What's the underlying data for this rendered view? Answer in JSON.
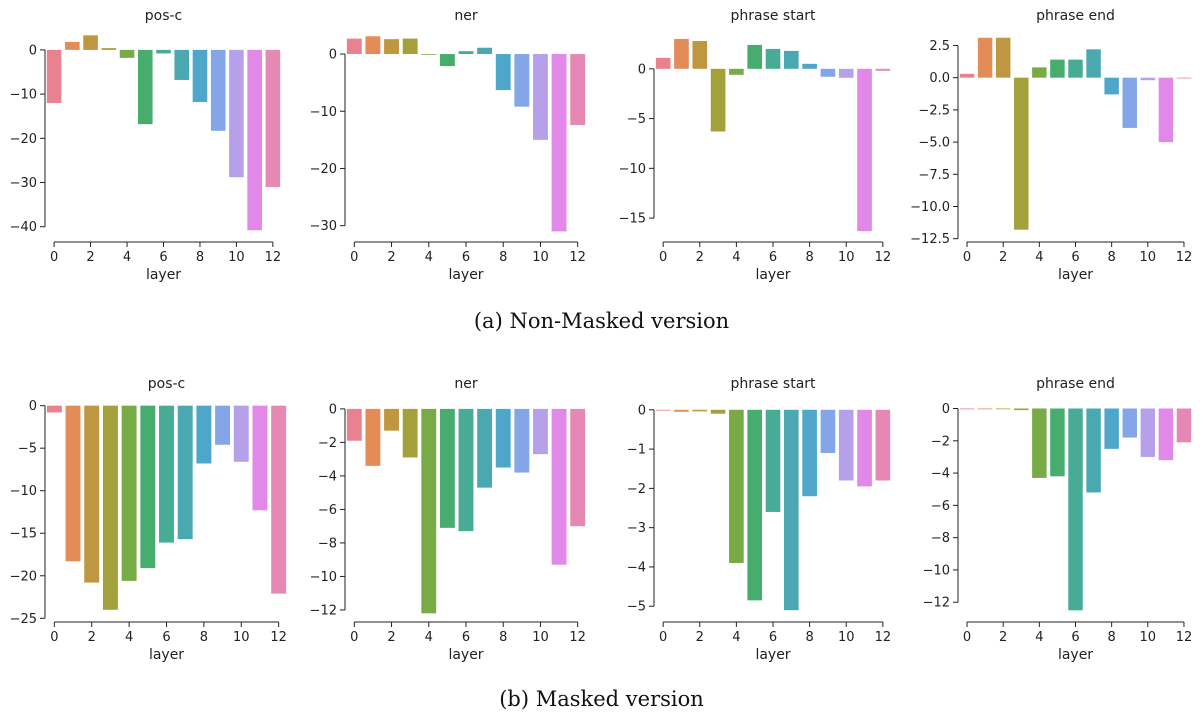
{
  "captions": {
    "top": "(a) Non-Masked version",
    "bottom": "(b) Masked version"
  },
  "colors": [
    "#e8828f",
    "#e38c58",
    "#be9740",
    "#a2a13c",
    "#78ab45",
    "#46ad6f",
    "#48ab96",
    "#4aa9b0",
    "#4fa6cb",
    "#84a6e8",
    "#b7a0ea",
    "#e188e8",
    "#e688b4"
  ],
  "chart_data": [
    {
      "type": "bar",
      "title": "pos-c",
      "xlabel": "layer",
      "ylabel": "",
      "categories": [
        0,
        1,
        2,
        3,
        4,
        5,
        6,
        7,
        8,
        9,
        10,
        11,
        12
      ],
      "values": [
        -12,
        1.8,
        3.3,
        0.4,
        -1.8,
        -16.8,
        -0.8,
        -6.8,
        -11.8,
        -18.3,
        -28.8,
        -40.8,
        -31
      ],
      "ylim": [
        -43,
        4.5
      ],
      "yticks": [
        0,
        -10,
        -20,
        -30,
        -40
      ],
      "xticks": [
        0,
        2,
        4,
        6,
        8,
        10,
        12
      ]
    },
    {
      "type": "bar",
      "title": "ner",
      "xlabel": "layer",
      "ylabel": "",
      "categories": [
        0,
        1,
        2,
        3,
        4,
        5,
        6,
        7,
        8,
        9,
        10,
        11,
        12
      ],
      "values": [
        2.7,
        3.1,
        2.6,
        2.7,
        0,
        -2.1,
        0.5,
        1.1,
        -6.3,
        -9.2,
        -15,
        -31,
        -12.4
      ],
      "ylim": [
        -32.5,
        4.2
      ],
      "yticks": [
        0,
        -10,
        -20,
        -30
      ],
      "xticks": [
        0,
        2,
        4,
        6,
        8,
        10,
        12
      ]
    },
    {
      "type": "bar",
      "title": "phrase start",
      "xlabel": "layer",
      "ylabel": "",
      "categories": [
        0,
        1,
        2,
        3,
        4,
        5,
        6,
        7,
        8,
        9,
        10,
        11,
        12
      ],
      "values": [
        1.1,
        3.0,
        2.8,
        -6.3,
        -0.6,
        2.4,
        2.0,
        1.8,
        0.5,
        -0.8,
        -0.9,
        -16.3,
        -0.2
      ],
      "ylim": [
        -17.2,
        3.9
      ],
      "yticks": [
        0,
        -5,
        -10,
        -15
      ],
      "xticks": [
        0,
        2,
        4,
        6,
        8,
        10,
        12
      ]
    },
    {
      "type": "bar",
      "title": "phrase end",
      "xlabel": "layer",
      "ylabel": "",
      "categories": [
        0,
        1,
        2,
        3,
        4,
        5,
        6,
        7,
        8,
        9,
        10,
        11,
        12
      ],
      "values": [
        0.3,
        3.1,
        3.1,
        -11.8,
        0.8,
        1.4,
        1.4,
        2.2,
        -1.3,
        -3.9,
        -0.2,
        -5.0,
        0
      ],
      "ylim": [
        -12.6,
        3.7
      ],
      "yticks": [
        2.5,
        0.0,
        -2.5,
        -5.0,
        -7.5,
        -10.0,
        -12.5
      ],
      "ytick_decimals": 1,
      "xticks": [
        0,
        2,
        4,
        6,
        8,
        10,
        12
      ]
    },
    {
      "type": "bar",
      "title": "pos-c",
      "xlabel": "layer",
      "ylabel": "",
      "categories": [
        0,
        1,
        2,
        3,
        4,
        5,
        6,
        7,
        8,
        9,
        10,
        11,
        12
      ],
      "values": [
        -0.8,
        -18.3,
        -20.8,
        -24,
        -20.6,
        -19.1,
        -16.1,
        -15.7,
        -6.8,
        -4.6,
        -6.6,
        -12.3,
        -22.1
      ],
      "ylim": [
        -25.2,
        0.9
      ],
      "yticks": [
        0,
        -5,
        -10,
        -15,
        -20,
        -25
      ],
      "xticks": [
        0,
        2,
        4,
        6,
        8,
        10,
        12
      ]
    },
    {
      "type": "bar",
      "title": "ner",
      "xlabel": "layer",
      "ylabel": "",
      "categories": [
        0,
        1,
        2,
        3,
        4,
        5,
        6,
        7,
        8,
        9,
        10,
        11,
        12
      ],
      "values": [
        -1.9,
        -3.4,
        -1.3,
        -2.9,
        -12.2,
        -7.1,
        -7.3,
        -4.7,
        -3.5,
        -3.8,
        -2.7,
        -9.3,
        -7.0
      ],
      "ylim": [
        -12.6,
        0.65
      ],
      "yticks": [
        0,
        -2,
        -4,
        -6,
        -8,
        -10,
        -12
      ],
      "xticks": [
        0,
        2,
        4,
        6,
        8,
        10,
        12
      ]
    },
    {
      "type": "bar",
      "title": "phrase start",
      "xlabel": "layer",
      "ylabel": "",
      "categories": [
        0,
        1,
        2,
        3,
        4,
        5,
        6,
        7,
        8,
        9,
        10,
        11,
        12
      ],
      "values": [
        0,
        -0.05,
        -0.04,
        -0.1,
        -3.9,
        -4.85,
        -2.6,
        -5.1,
        -2.2,
        -1.1,
        -1.8,
        -1.95,
        -1.8
      ],
      "ylim": [
        -5.35,
        0.3
      ],
      "yticks": [
        0,
        -1,
        -2,
        -3,
        -4,
        -5
      ],
      "xticks": [
        0,
        2,
        4,
        6,
        8,
        10,
        12
      ]
    },
    {
      "type": "bar",
      "title": "phrase end",
      "xlabel": "layer",
      "ylabel": "",
      "categories": [
        0,
        1,
        2,
        3,
        4,
        5,
        6,
        7,
        8,
        9,
        10,
        11,
        12
      ],
      "values": [
        0,
        -0.05,
        -0.05,
        -0.1,
        -4.3,
        -4.2,
        -12.5,
        -5.2,
        -2.5,
        -1.8,
        -3.0,
        -3.2,
        -2.1
      ],
      "ylim": [
        -13.1,
        0.65
      ],
      "yticks": [
        0,
        -2,
        -4,
        -6,
        -8,
        -10,
        -12
      ],
      "xticks": [
        0,
        2,
        4,
        6,
        8,
        10,
        12
      ]
    }
  ]
}
